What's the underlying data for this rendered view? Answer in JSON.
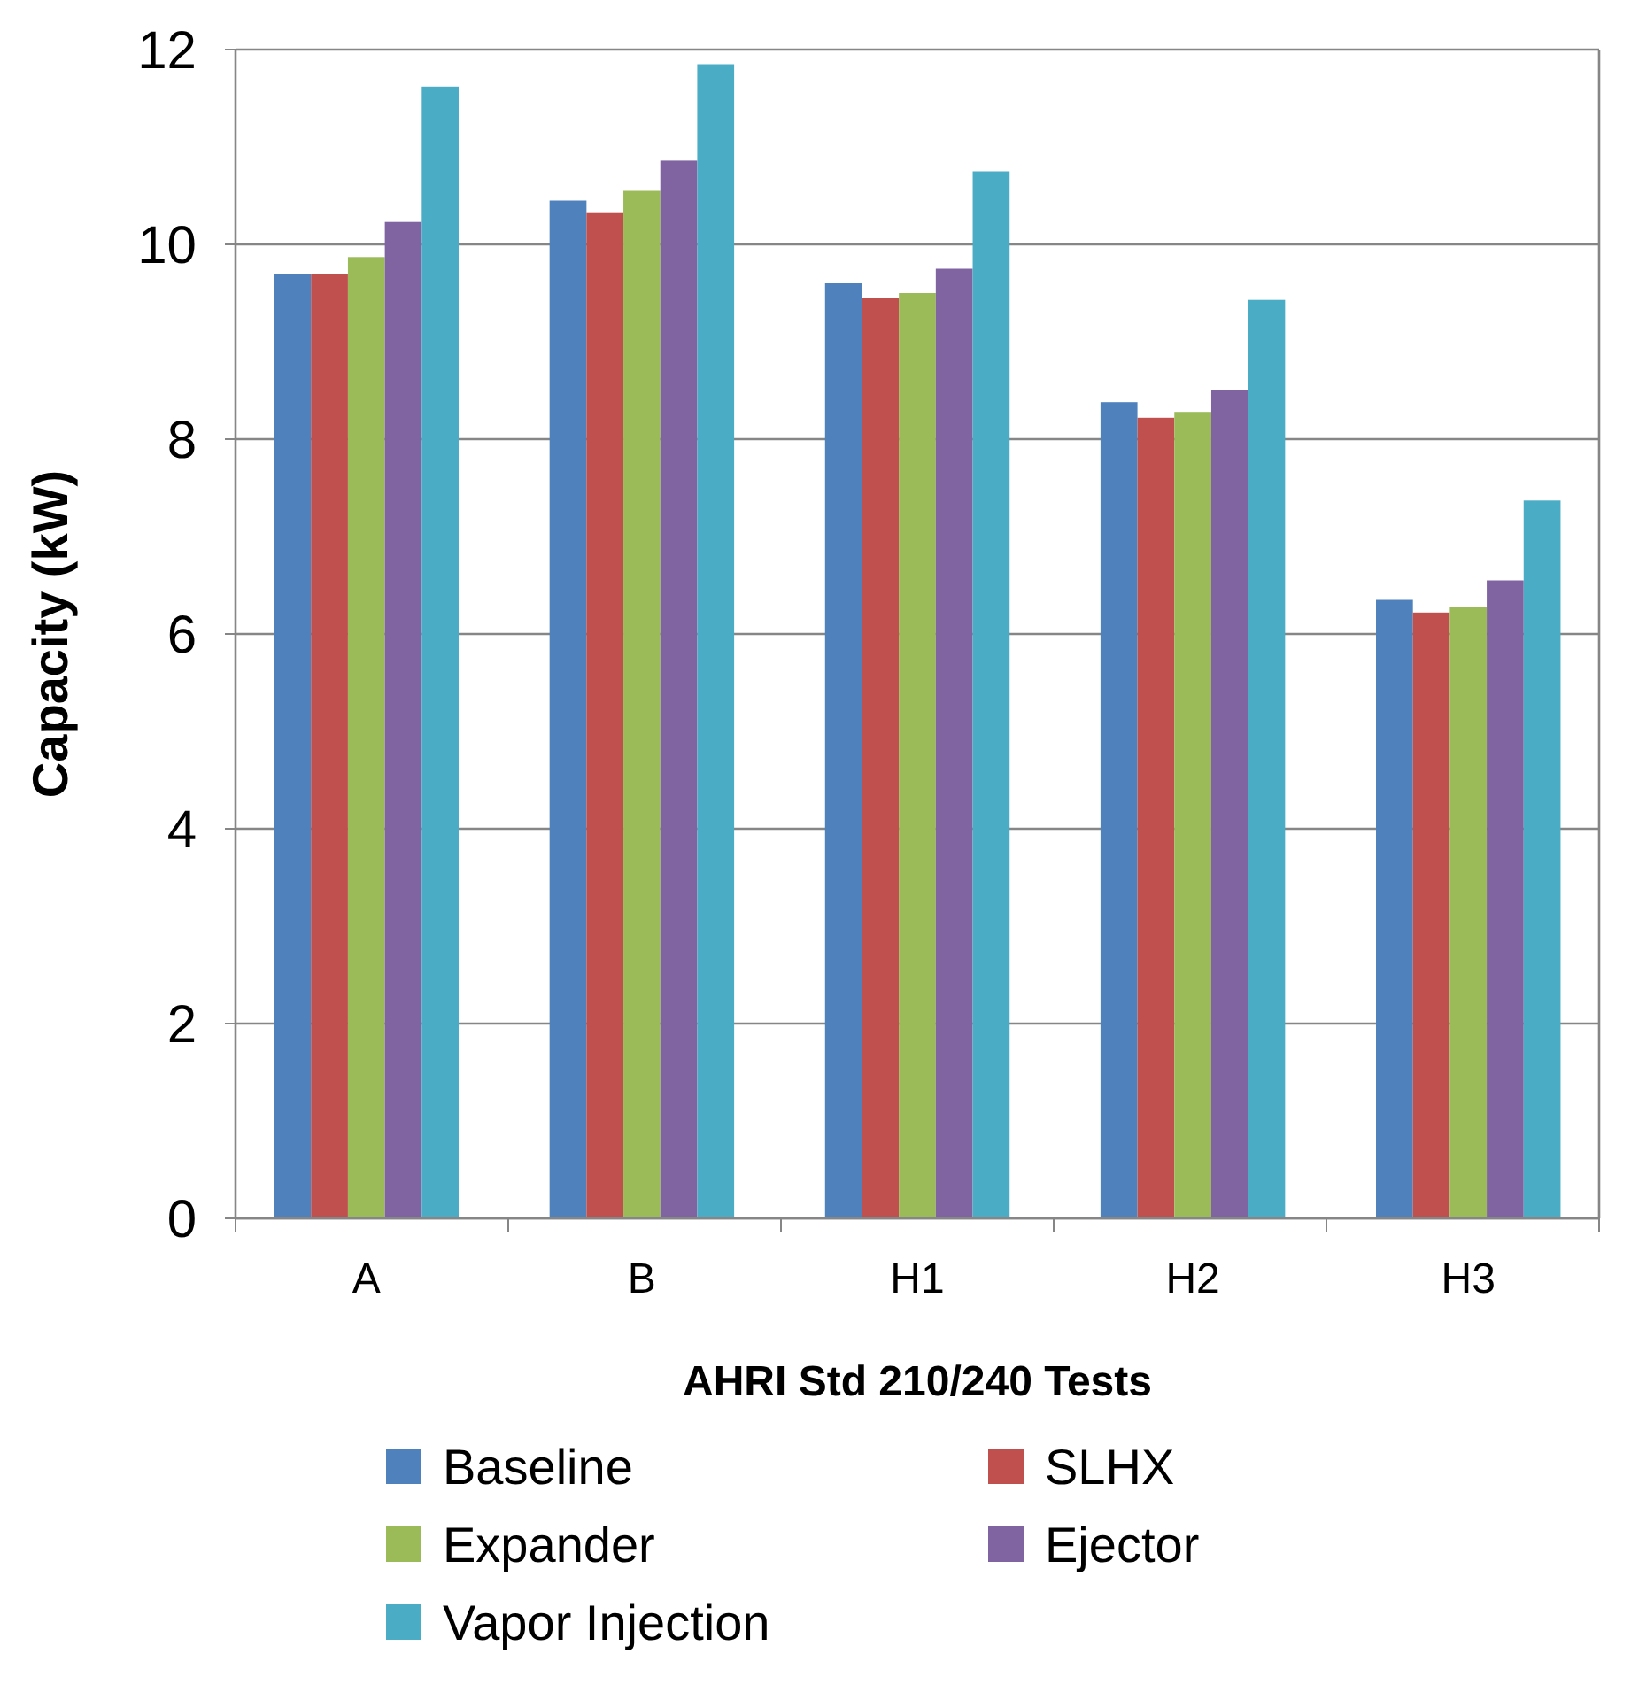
{
  "chart_data": {
    "type": "bar",
    "xlabel": "AHRI Std 210/240 Tests",
    "ylabel": "Capacity (kW)",
    "categories": [
      "A",
      "B",
      "H1",
      "H2",
      "H3"
    ],
    "series": [
      {
        "name": "Baseline",
        "color": "#4f81bd",
        "values": [
          9.7,
          10.45,
          9.6,
          8.38,
          6.35
        ]
      },
      {
        "name": "SLHX",
        "color": "#c0504d",
        "values": [
          9.7,
          10.33,
          9.45,
          8.22,
          6.22
        ]
      },
      {
        "name": "Expander",
        "color": "#9bbb59",
        "values": [
          9.87,
          10.55,
          9.5,
          8.28,
          6.28
        ]
      },
      {
        "name": "Ejector",
        "color": "#8064a2",
        "values": [
          10.23,
          10.86,
          9.75,
          8.5,
          6.55
        ]
      },
      {
        "name": "Vapor Injection",
        "color": "#4bacc6",
        "values": [
          11.62,
          11.85,
          10.75,
          9.43,
          7.37
        ]
      }
    ],
    "ylim": [
      0,
      12
    ],
    "yticks": [
      0,
      2,
      4,
      6,
      8,
      10,
      12
    ],
    "grid": "y",
    "legend": "bottom"
  }
}
